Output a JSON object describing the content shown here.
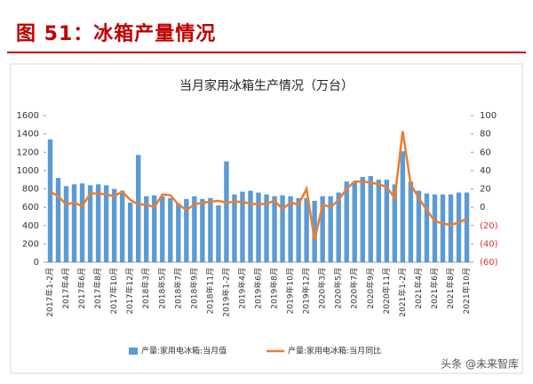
{
  "header": {
    "title": "图 51：冰箱产量情况"
  },
  "watermark": "头条 @未来智库",
  "chart_data": {
    "type": "bar-line",
    "title": "当月家用冰箱生产情况（万台）",
    "categories": [
      "2017年1-2月",
      null,
      "2017年4月",
      null,
      "2017年6月",
      null,
      "2017年8月",
      null,
      "2017年10月",
      null,
      "2017年12月",
      null,
      "2018年3月",
      null,
      "2018年5月",
      null,
      "2018年7月",
      null,
      "2018年9月",
      null,
      "2018年11月",
      null,
      "2019年1-2月",
      null,
      "2019年4月",
      null,
      "2019年6月",
      null,
      "2019年8月",
      null,
      "2019年10月",
      null,
      "2019年12月",
      null,
      "2020年3月",
      null,
      "2020年5月",
      null,
      "2020年7月",
      null,
      "2020年9月",
      null,
      "2020年11月",
      null,
      "2021年1-2月",
      null,
      "2021年4月",
      null,
      "2021年6月",
      null,
      "2021年8月",
      null,
      "2021年10月"
    ],
    "series": [
      {
        "name": "产量:家用电冰箱:当月值",
        "color": "#5b9bd5",
        "values": [
          1340,
          920,
          830,
          850,
          860,
          840,
          850,
          840,
          800,
          780,
          650,
          1170,
          720,
          730,
          720,
          700,
          640,
          690,
          720,
          690,
          700,
          620,
          1100,
          740,
          770,
          780,
          760,
          740,
          720,
          730,
          720,
          700,
          700,
          670,
          720,
          720,
          760,
          880,
          880,
          930,
          940,
          900,
          900,
          850,
          1210,
          880,
          780,
          750,
          740,
          740,
          740,
          760,
          760
        ]
      },
      {
        "name": "产量:家用电冰箱:当月同比",
        "color": "#ed7d31",
        "axis": "y2",
        "values": [
          17,
          12,
          3,
          5,
          1,
          15,
          15,
          14,
          12,
          17,
          8,
          3,
          3,
          0,
          14,
          13,
          3,
          -3,
          3,
          5,
          6,
          7,
          5,
          6,
          6,
          4,
          3,
          4,
          7,
          -2,
          5,
          3,
          20,
          -36,
          3,
          0,
          8,
          20,
          28,
          28,
          27,
          25,
          22,
          10,
          83,
          25,
          10,
          -3,
          -15,
          -18,
          -19,
          -17,
          -12
        ]
      }
    ],
    "ylim": [
      0,
      1600
    ],
    "yticks": [
      0,
      200,
      400,
      600,
      800,
      1000,
      1200,
      1400,
      1600
    ],
    "y2lim": [
      -60,
      100
    ],
    "y2ticks": [
      {
        "value": -60,
        "label": "(60)"
      },
      {
        "value": -40,
        "label": "(40)"
      },
      {
        "value": -20,
        "label": "(20)"
      },
      0,
      20,
      40,
      60,
      80,
      100
    ],
    "legend": "bottom"
  }
}
